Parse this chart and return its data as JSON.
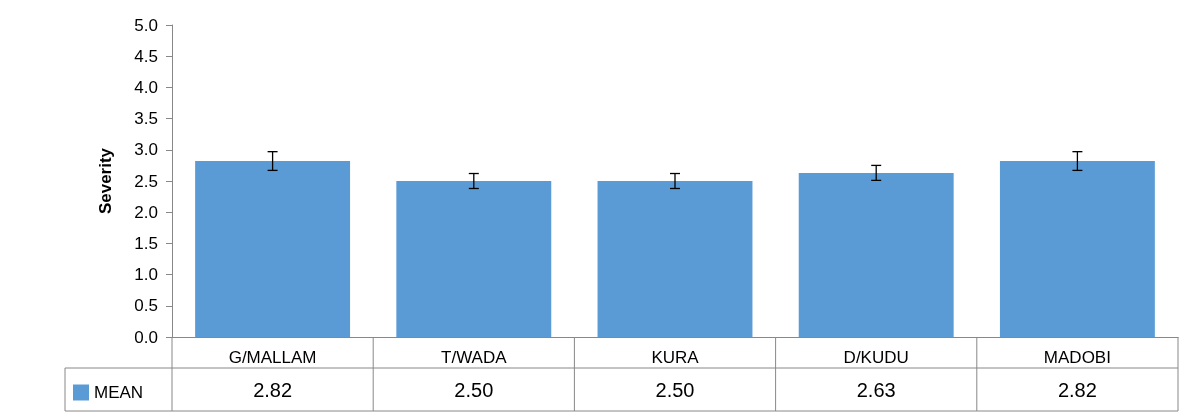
{
  "chart_data": {
    "type": "bar",
    "ylabel": "Severity",
    "categories": [
      "G/MALLAM",
      "T/WADA",
      "KURA",
      "D/KUDU",
      "MADOBI"
    ],
    "series": [
      {
        "name": "MEAN",
        "color": "#5b9bd5",
        "values": [
          2.82,
          2.5,
          2.5,
          2.63,
          2.82
        ],
        "errors": [
          0.15,
          0.12,
          0.12,
          0.12,
          0.15
        ],
        "value_labels": [
          "2.82",
          "2.50",
          "2.50",
          "2.63",
          "2.82"
        ]
      }
    ],
    "ylim": [
      0,
      5
    ],
    "yticks": [
      {
        "value": 0,
        "label": "0.0"
      },
      {
        "value": 0.5,
        "label": "0.5"
      },
      {
        "value": 1,
        "label": "1.0"
      },
      {
        "value": 1.5,
        "label": "1.5"
      },
      {
        "value": 2,
        "label": "2.0"
      },
      {
        "value": 2.5,
        "label": "2.5"
      },
      {
        "value": 3,
        "label": "3.0"
      },
      {
        "value": 3.5,
        "label": "3.5"
      },
      {
        "value": 4,
        "label": "4.0"
      },
      {
        "value": 4.5,
        "label": "4.5"
      },
      {
        "value": 5,
        "label": "5.0"
      }
    ],
    "grid": false,
    "legend": "bottom left"
  }
}
